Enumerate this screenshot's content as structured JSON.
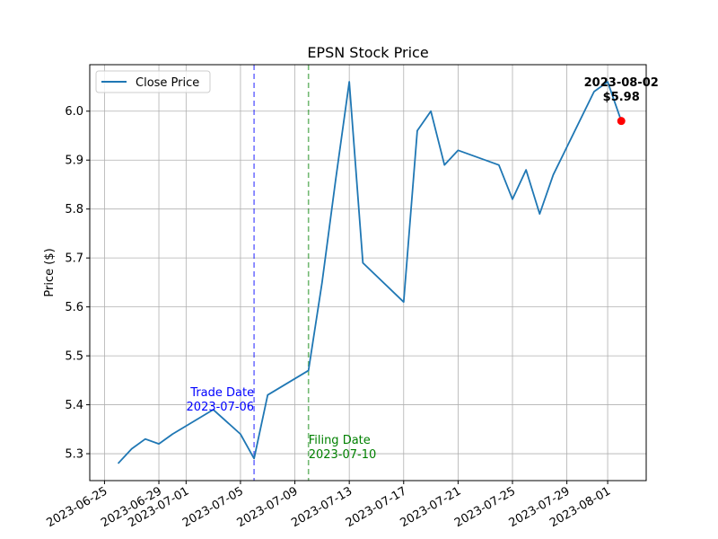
{
  "chart_data": {
    "type": "line",
    "title": "EPSN Stock Price",
    "xlabel": "",
    "ylabel": "Price ($)",
    "xlim": [
      "2023-06-23T22:00",
      "2023-08-03T20:00"
    ],
    "ylim": [
      5.245,
      6.095
    ],
    "grid": true,
    "legend_position": "top-left",
    "x_ticks": [
      "2023-06-25",
      "2023-06-29",
      "2023-07-01",
      "2023-07-05",
      "2023-07-09",
      "2023-07-13",
      "2023-07-17",
      "2023-07-21",
      "2023-07-25",
      "2023-07-29",
      "2023-08-01"
    ],
    "y_ticks": [
      "5.3",
      "5.4",
      "5.5",
      "5.6",
      "5.7",
      "5.8",
      "5.9",
      "6.0"
    ],
    "series": [
      {
        "name": "Close Price",
        "color": "#1f77b4",
        "x": [
          "2023-06-26",
          "2023-06-27",
          "2023-06-28",
          "2023-06-29",
          "2023-06-30",
          "2023-07-03",
          "2023-07-05",
          "2023-07-06",
          "2023-07-07",
          "2023-07-10",
          "2023-07-11",
          "2023-07-12",
          "2023-07-13",
          "2023-07-14",
          "2023-07-17",
          "2023-07-18",
          "2023-07-19",
          "2023-07-20",
          "2023-07-21",
          "2023-07-24",
          "2023-07-25",
          "2023-07-26",
          "2023-07-27",
          "2023-07-28",
          "2023-07-31",
          "2023-08-01",
          "2023-08-02"
        ],
        "values": [
          5.28,
          5.31,
          5.33,
          5.32,
          5.34,
          5.39,
          5.34,
          5.29,
          5.42,
          5.47,
          5.65,
          5.86,
          6.06,
          5.69,
          5.61,
          5.96,
          6.0,
          5.89,
          5.92,
          5.89,
          5.82,
          5.88,
          5.79,
          5.87,
          6.04,
          6.06,
          5.98
        ]
      }
    ],
    "vlines": [
      {
        "x": "2023-07-06",
        "color": "#0000ff",
        "label_lines": [
          "Trade Date",
          "2023-07-06"
        ]
      },
      {
        "x": "2023-07-10",
        "color": "#008000",
        "label_lines": [
          "Filing Date",
          "2023-07-10"
        ]
      }
    ],
    "last_point": {
      "x": "2023-08-02",
      "y": 5.98,
      "color": "#ff0000",
      "label_lines": [
        "2023-08-02",
        "$5.98"
      ]
    }
  }
}
